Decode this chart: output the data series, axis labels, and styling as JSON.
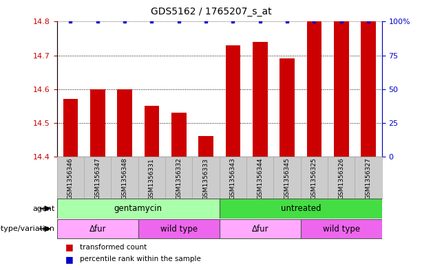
{
  "title": "GDS5162 / 1765207_s_at",
  "samples": [
    "GSM1356346",
    "GSM1356347",
    "GSM1356348",
    "GSM1356331",
    "GSM1356332",
    "GSM1356333",
    "GSM1356343",
    "GSM1356344",
    "GSM1356345",
    "GSM1356325",
    "GSM1356326",
    "GSM1356327"
  ],
  "transformed_counts": [
    14.57,
    14.6,
    14.6,
    14.55,
    14.53,
    14.46,
    14.73,
    14.74,
    14.69,
    14.8,
    14.8,
    14.8
  ],
  "percentile_ranks": [
    100,
    100,
    100,
    100,
    100,
    100,
    100,
    100,
    100,
    100,
    100,
    100
  ],
  "ylim_left": [
    14.4,
    14.8
  ],
  "ylim_right": [
    0,
    100
  ],
  "yticks_left": [
    14.4,
    14.5,
    14.6,
    14.7,
    14.8
  ],
  "yticks_right": [
    0,
    25,
    50,
    75,
    100
  ],
  "bar_color": "#cc0000",
  "dot_color": "#0000cc",
  "agent_groups": [
    {
      "label": "gentamycin",
      "start": 0,
      "end": 6,
      "color": "#aaffaa"
    },
    {
      "label": "untreated",
      "start": 6,
      "end": 12,
      "color": "#44dd44"
    }
  ],
  "genotype_groups": [
    {
      "label": "Δfur",
      "start": 0,
      "end": 3,
      "color": "#ffaaff"
    },
    {
      "label": "wild type",
      "start": 3,
      "end": 6,
      "color": "#ee66ee"
    },
    {
      "label": "Δfur",
      "start": 6,
      "end": 9,
      "color": "#ffaaff"
    },
    {
      "label": "wild type",
      "start": 9,
      "end": 12,
      "color": "#ee66ee"
    }
  ],
  "legend_items": [
    {
      "label": "transformed count",
      "color": "#cc0000"
    },
    {
      "label": "percentile rank within the sample",
      "color": "#0000cc"
    }
  ],
  "background_color": "#ffffff",
  "tick_label_color_left": "#cc0000",
  "tick_label_color_right": "#0000cc",
  "sample_bg_color": "#cccccc",
  "sample_border_color": "#aaaaaa"
}
